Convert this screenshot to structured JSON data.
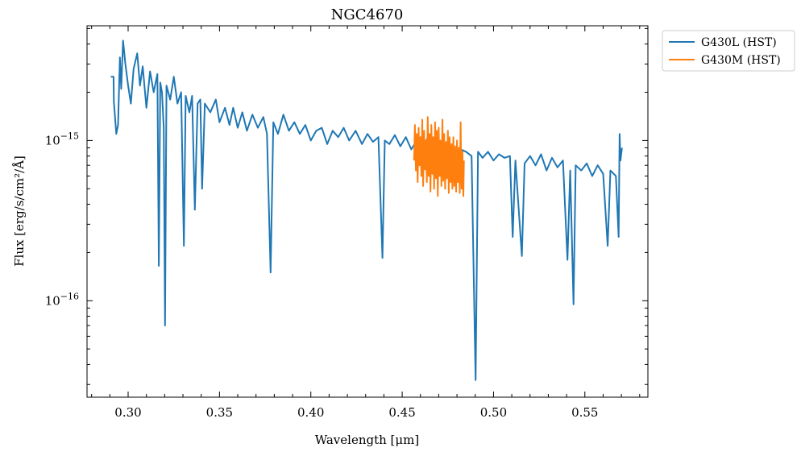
{
  "chart_data": {
    "type": "line",
    "title": "NGC4670",
    "xlabel": "Wavelength [μm]",
    "ylabel": "Flux [erg/s/cm²/Å]",
    "yscale": "log",
    "xlim": [
      0.2775,
      0.5845
    ],
    "ylim": [
      2.5e-17,
      5.2e-15
    ],
    "xticks": [
      0.3,
      0.35,
      0.4,
      0.45,
      0.5,
      0.55
    ],
    "xtick_labels": [
      "0.30",
      "0.35",
      "0.40",
      "0.45",
      "0.50",
      "0.55"
    ],
    "yticks": [
      {
        "value": 1e-15,
        "base": "10",
        "exp": "−15"
      },
      {
        "value": 1e-16,
        "base": "10",
        "exp": "−16"
      }
    ],
    "legend_position": "outside top-right",
    "series": [
      {
        "name": "G430L (HST)",
        "color": "#1f77b4",
        "points": [
          [
            0.2905,
            2.5e-15
          ],
          [
            0.292,
            2.5e-15
          ],
          [
            0.2922,
            1.75e-15
          ],
          [
            0.2935,
            1.1e-15
          ],
          [
            0.2945,
            1.25e-15
          ],
          [
            0.2955,
            3.3e-15
          ],
          [
            0.2962,
            2.1e-15
          ],
          [
            0.2972,
            4.2e-15
          ],
          [
            0.2985,
            3e-15
          ],
          [
            0.3,
            2.2e-15
          ],
          [
            0.3015,
            1.7e-15
          ],
          [
            0.303,
            2.8e-15
          ],
          [
            0.305,
            3.5e-15
          ],
          [
            0.3065,
            2.2e-15
          ],
          [
            0.308,
            2.9e-15
          ],
          [
            0.31,
            1.6e-15
          ],
          [
            0.312,
            2.7e-15
          ],
          [
            0.314,
            2e-15
          ],
          [
            0.316,
            2.6e-15
          ],
          [
            0.3168,
            1.65e-16
          ],
          [
            0.3176,
            2.3e-15
          ],
          [
            0.3185,
            2e-15
          ],
          [
            0.3195,
            1.2e-15
          ],
          [
            0.3202,
            7e-17
          ],
          [
            0.321,
            2.2e-15
          ],
          [
            0.323,
            1.8e-15
          ],
          [
            0.325,
            2.5e-15
          ],
          [
            0.327,
            1.7e-15
          ],
          [
            0.329,
            2e-15
          ],
          [
            0.3305,
            2.2e-16
          ],
          [
            0.3315,
            1.9e-15
          ],
          [
            0.3335,
            1.5e-15
          ],
          [
            0.335,
            1.9e-15
          ],
          [
            0.3365,
            3.7e-16
          ],
          [
            0.338,
            1.7e-15
          ],
          [
            0.3395,
            1.8e-15
          ],
          [
            0.3405,
            5e-16
          ],
          [
            0.342,
            1.7e-15
          ],
          [
            0.345,
            1.5e-15
          ],
          [
            0.348,
            1.8e-15
          ],
          [
            0.35,
            1.3e-15
          ],
          [
            0.353,
            1.6e-15
          ],
          [
            0.3555,
            1.25e-15
          ],
          [
            0.3575,
            1.6e-15
          ],
          [
            0.36,
            1.2e-15
          ],
          [
            0.3625,
            1.5e-15
          ],
          [
            0.365,
            1.15e-15
          ],
          [
            0.368,
            1.45e-15
          ],
          [
            0.371,
            1.2e-15
          ],
          [
            0.374,
            1.4e-15
          ],
          [
            0.376,
            1.1e-15
          ],
          [
            0.378,
            1.5e-16
          ],
          [
            0.3795,
            1.3e-15
          ],
          [
            0.382,
            1.1e-15
          ],
          [
            0.385,
            1.45e-15
          ],
          [
            0.388,
            1.15e-15
          ],
          [
            0.391,
            1.3e-15
          ],
          [
            0.394,
            1.1e-15
          ],
          [
            0.397,
            1.25e-15
          ],
          [
            0.4,
            1e-15
          ],
          [
            0.403,
            1.15e-15
          ],
          [
            0.406,
            1.2e-15
          ],
          [
            0.409,
            9.5e-16
          ],
          [
            0.412,
            1.15e-15
          ],
          [
            0.415,
            1.05e-15
          ],
          [
            0.418,
            1.2e-15
          ],
          [
            0.421,
            1e-15
          ],
          [
            0.4245,
            1.15e-15
          ],
          [
            0.428,
            9.5e-16
          ],
          [
            0.431,
            1.1e-15
          ],
          [
            0.434,
            9.8e-16
          ],
          [
            0.437,
            1.05e-15
          ],
          [
            0.4392,
            1.85e-16
          ],
          [
            0.4405,
            1e-15
          ],
          [
            0.443,
            9.5e-16
          ],
          [
            0.446,
            1.08e-15
          ],
          [
            0.449,
            9.2e-16
          ],
          [
            0.452,
            1.05e-15
          ],
          [
            0.455,
            8.8e-16
          ],
          [
            0.458,
            1e-15
          ],
          [
            0.461,
            8.5e-16
          ],
          [
            0.464,
            1.05e-15
          ],
          [
            0.467,
            8.2e-16
          ],
          [
            0.47,
            9.5e-16
          ],
          [
            0.473,
            8e-16
          ],
          [
            0.476,
            9e-16
          ],
          [
            0.479,
            8.2e-16
          ],
          [
            0.482,
            8.8e-16
          ],
          [
            0.485,
            8.5e-16
          ],
          [
            0.488,
            8e-16
          ],
          [
            0.4902,
            3.2e-17
          ],
          [
            0.4915,
            8.5e-16
          ],
          [
            0.494,
            7.8e-16
          ],
          [
            0.497,
            8.5e-16
          ],
          [
            0.5,
            7.5e-16
          ],
          [
            0.503,
            8.2e-16
          ],
          [
            0.506,
            7.8e-16
          ],
          [
            0.509,
            8e-16
          ],
          [
            0.5105,
            2.5e-16
          ],
          [
            0.512,
            7.5e-16
          ],
          [
            0.5155,
            1.9e-16
          ],
          [
            0.517,
            7.2e-16
          ],
          [
            0.52,
            8e-16
          ],
          [
            0.523,
            7e-16
          ],
          [
            0.526,
            8.2e-16
          ],
          [
            0.529,
            6.5e-16
          ],
          [
            0.532,
            7.8e-16
          ],
          [
            0.535,
            6.8e-16
          ],
          [
            0.538,
            7.5e-16
          ],
          [
            0.5405,
            1.8e-16
          ],
          [
            0.542,
            6.5e-16
          ],
          [
            0.5438,
            9.5e-17
          ],
          [
            0.545,
            7e-16
          ],
          [
            0.548,
            6.5e-16
          ],
          [
            0.551,
            7.2e-16
          ],
          [
            0.554,
            6e-16
          ],
          [
            0.557,
            7e-16
          ],
          [
            0.56,
            6.2e-16
          ],
          [
            0.5625,
            2.2e-16
          ],
          [
            0.564,
            6.5e-16
          ],
          [
            0.567,
            6e-16
          ],
          [
            0.5685,
            2.5e-16
          ],
          [
            0.569,
            1.1e-15
          ],
          [
            0.5695,
            7.5e-16
          ],
          [
            0.5703,
            9e-16
          ]
        ]
      },
      {
        "name": "G430M (HST)",
        "color": "#ff7f0e",
        "points": [
          [
            0.4565,
            7.5e-16
          ],
          [
            0.457,
            1.25e-15
          ],
          [
            0.4575,
            6.5e-16
          ],
          [
            0.458,
            1.1e-15
          ],
          [
            0.4585,
            5.5e-16
          ],
          [
            0.459,
            1.2e-15
          ],
          [
            0.4595,
            7e-16
          ],
          [
            0.46,
            1.05e-15
          ],
          [
            0.4605,
            6e-16
          ],
          [
            0.461,
            1.35e-15
          ],
          [
            0.4615,
            5.2e-16
          ],
          [
            0.462,
            1.15e-15
          ],
          [
            0.4625,
            6.6e-16
          ],
          [
            0.463,
            1e-15
          ],
          [
            0.4635,
            5.5e-16
          ],
          [
            0.464,
            1.4e-15
          ],
          [
            0.4645,
            6e-16
          ],
          [
            0.465,
            1.1e-15
          ],
          [
            0.4655,
            4.8e-16
          ],
          [
            0.466,
            1.25e-15
          ],
          [
            0.4665,
            6.2e-16
          ],
          [
            0.467,
            1.05e-15
          ],
          [
            0.4675,
            5e-16
          ],
          [
            0.468,
            1.3e-15
          ],
          [
            0.4685,
            5.8e-16
          ],
          [
            0.469,
            1.15e-15
          ],
          [
            0.4695,
            4.5e-16
          ],
          [
            0.47,
            1.2e-15
          ],
          [
            0.4705,
            6e-16
          ],
          [
            0.471,
            1e-15
          ],
          [
            0.4715,
            5.2e-16
          ],
          [
            0.472,
            1.35e-15
          ],
          [
            0.4725,
            5.6e-16
          ],
          [
            0.473,
            1.1e-15
          ],
          [
            0.4735,
            5e-16
          ],
          [
            0.474,
            9.8e-16
          ],
          [
            0.4745,
            5.8e-16
          ],
          [
            0.475,
            1.15e-15
          ],
          [
            0.4755,
            4.7e-16
          ],
          [
            0.476,
            1.05e-15
          ],
          [
            0.4765,
            5.5e-16
          ],
          [
            0.477,
            9.5e-16
          ],
          [
            0.4775,
            5e-16
          ],
          [
            0.478,
            1.05e-15
          ],
          [
            0.4785,
            5.2e-16
          ],
          [
            0.479,
            9.2e-16
          ],
          [
            0.4795,
            4.8e-16
          ],
          [
            0.48,
            1e-15
          ],
          [
            0.4805,
            5.5e-16
          ],
          [
            0.481,
            9e-16
          ],
          [
            0.4815,
            4.7e-16
          ],
          [
            0.482,
            1.3e-15
          ],
          [
            0.4825,
            5e-16
          ],
          [
            0.483,
            8.5e-16
          ],
          [
            0.4835,
            4.5e-16
          ],
          [
            0.4838,
            7.5e-16
          ]
        ]
      }
    ]
  }
}
